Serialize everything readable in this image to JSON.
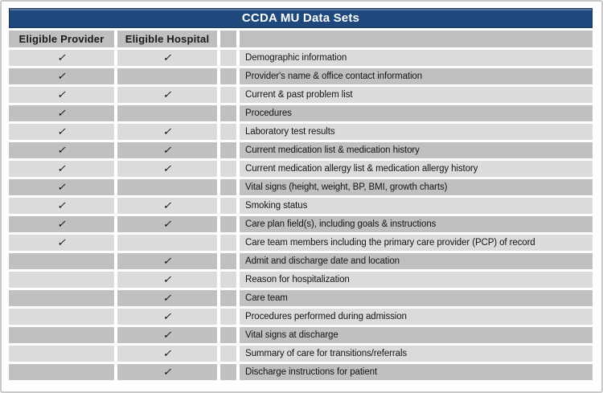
{
  "title": "CCDA MU Data Sets",
  "columns": {
    "provider": "Eligible Provider",
    "hospital": "Eligible Hospital"
  },
  "checkmark_glyph": "✓",
  "colors": {
    "title_bg": "#1f497d",
    "title_text": "#ffffff",
    "header_cell_bg": "#bfbfbf",
    "row_light_bg": "#dbdbdb",
    "row_dark_bg": "#c0c0c0",
    "check_color": "#0a0a14"
  },
  "rows": [
    {
      "label": "Demographic information",
      "eligible_provider": true,
      "eligible_hospital": true
    },
    {
      "label": "Provider's name & office contact information",
      "eligible_provider": true,
      "eligible_hospital": false
    },
    {
      "label": "Current & past problem list",
      "eligible_provider": true,
      "eligible_hospital": true
    },
    {
      "label": "Procedures",
      "eligible_provider": true,
      "eligible_hospital": false
    },
    {
      "label": "Laboratory test results",
      "eligible_provider": true,
      "eligible_hospital": true
    },
    {
      "label": "Current medication list & medication history",
      "eligible_provider": true,
      "eligible_hospital": true
    },
    {
      "label": "Current medication allergy list & medication allergy history",
      "eligible_provider": true,
      "eligible_hospital": true
    },
    {
      "label": "Vital signs (height, weight, BP, BMI, growth charts)",
      "eligible_provider": true,
      "eligible_hospital": false
    },
    {
      "label": "Smoking status",
      "eligible_provider": true,
      "eligible_hospital": true
    },
    {
      "label": "Care plan field(s), including goals & instructions",
      "eligible_provider": true,
      "eligible_hospital": true
    },
    {
      "label": "Care team members including the primary care provider (PCP) of record",
      "eligible_provider": true,
      "eligible_hospital": false
    },
    {
      "label": "Admit and discharge date and location",
      "eligible_provider": false,
      "eligible_hospital": true
    },
    {
      "label": "Reason for hospitalization",
      "eligible_provider": false,
      "eligible_hospital": true
    },
    {
      "label": "Care team",
      "eligible_provider": false,
      "eligible_hospital": true
    },
    {
      "label": "Procedures performed during admission",
      "eligible_provider": false,
      "eligible_hospital": true
    },
    {
      "label": "Vital signs at discharge",
      "eligible_provider": false,
      "eligible_hospital": true
    },
    {
      "label": "Summary of care for transitions/referrals",
      "eligible_provider": false,
      "eligible_hospital": true
    },
    {
      "label": "Discharge instructions for patient",
      "eligible_provider": false,
      "eligible_hospital": true
    }
  ]
}
